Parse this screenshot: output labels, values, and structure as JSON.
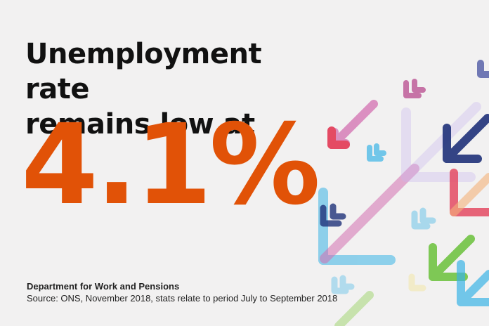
{
  "headline": {
    "line1": "Unemployment rate",
    "line2": "remains low at"
  },
  "figure": {
    "value": "4.1%",
    "color": "#e15207"
  },
  "footer": {
    "department": "Department for Work and Pensions",
    "source": "Source: ONS, November 2018, stats relate to period July to September 2018"
  },
  "decoration": {
    "description_icons": [
      "arrow-down-left-icon"
    ],
    "colors": [
      "#b84a8e",
      "#d36fb0",
      "#3bb4e6",
      "#20327a",
      "#f3b37a",
      "#e44a63",
      "#6ac13a",
      "#9bd36a"
    ]
  }
}
